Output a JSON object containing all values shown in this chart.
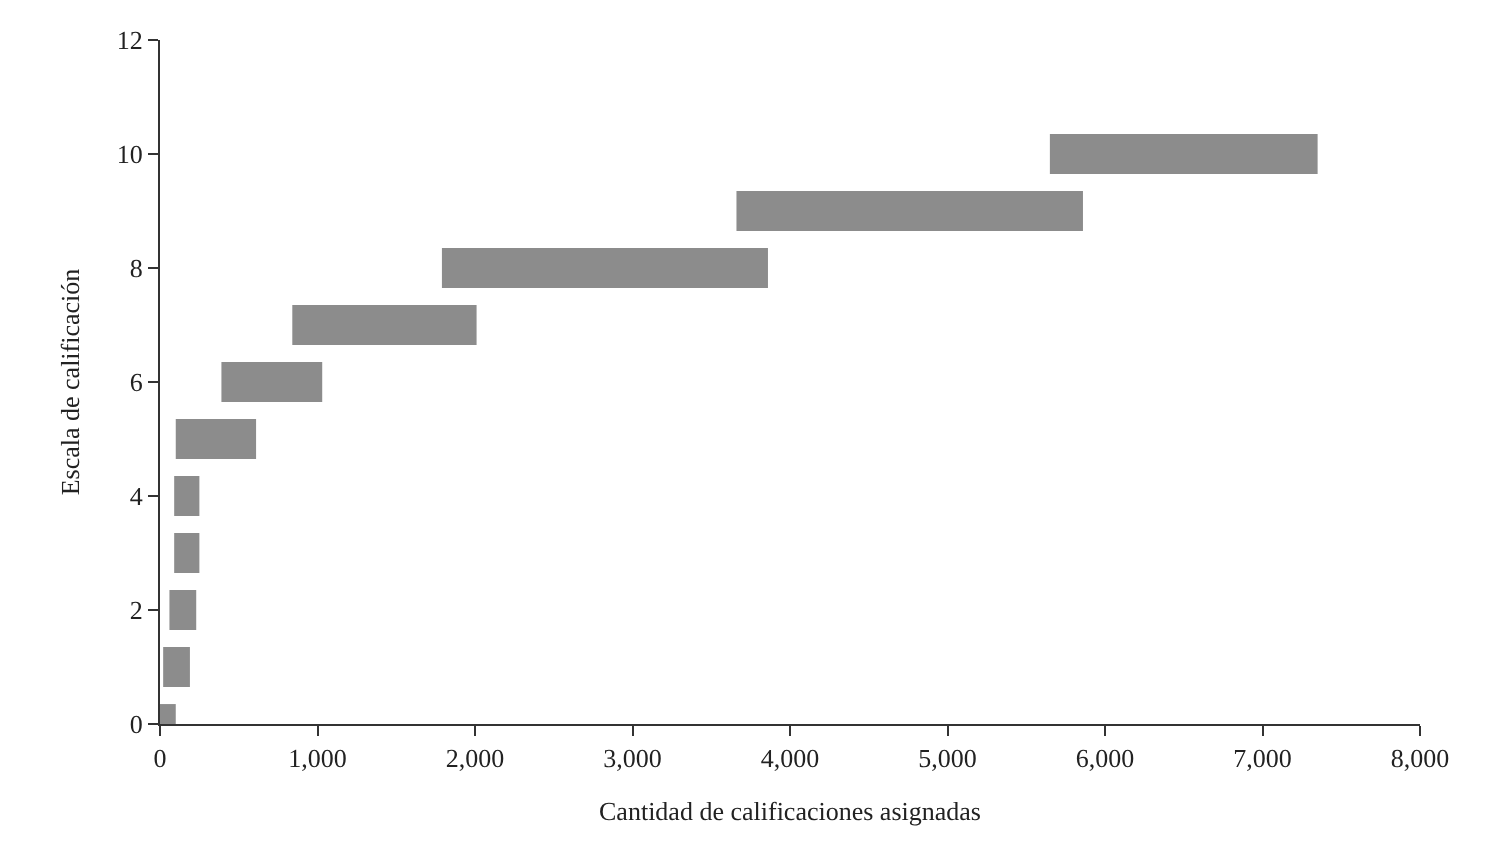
{
  "chart_data": {
    "type": "bar",
    "orientation": "horizontal",
    "xlabel": "Cantidad de calificaciones asignadas",
    "ylabel": "Escala de calificación",
    "x": [
      0,
      1,
      2,
      3,
      4,
      5,
      6,
      7,
      8,
      9,
      10
    ],
    "base": [
      0,
      20,
      60,
      90,
      90,
      100,
      390,
      840,
      1790,
      3660,
      5650
    ],
    "values": [
      100,
      170,
      170,
      160,
      160,
      510,
      640,
      1170,
      2070,
      2200,
      1700
    ],
    "color": "#8c8c8c",
    "xlim": [
      0,
      8000
    ],
    "xticks": [
      0,
      {
        "value": 1000,
        "label": "1,000"
      },
      {
        "value": 2000,
        "label": "2,000"
      },
      {
        "value": 3000,
        "label": "3,000"
      },
      {
        "value": 4000,
        "label": "4,000"
      },
      {
        "value": 5000,
        "label": "5,000"
      },
      {
        "value": 6000,
        "label": "6,000"
      },
      {
        "value": 7000,
        "label": "7,000"
      },
      {
        "value": 8000,
        "label": "8,000"
      }
    ],
    "ylim": [
      0,
      12
    ],
    "yticks": [
      0,
      2,
      4,
      6,
      8,
      10,
      12
    ]
  }
}
